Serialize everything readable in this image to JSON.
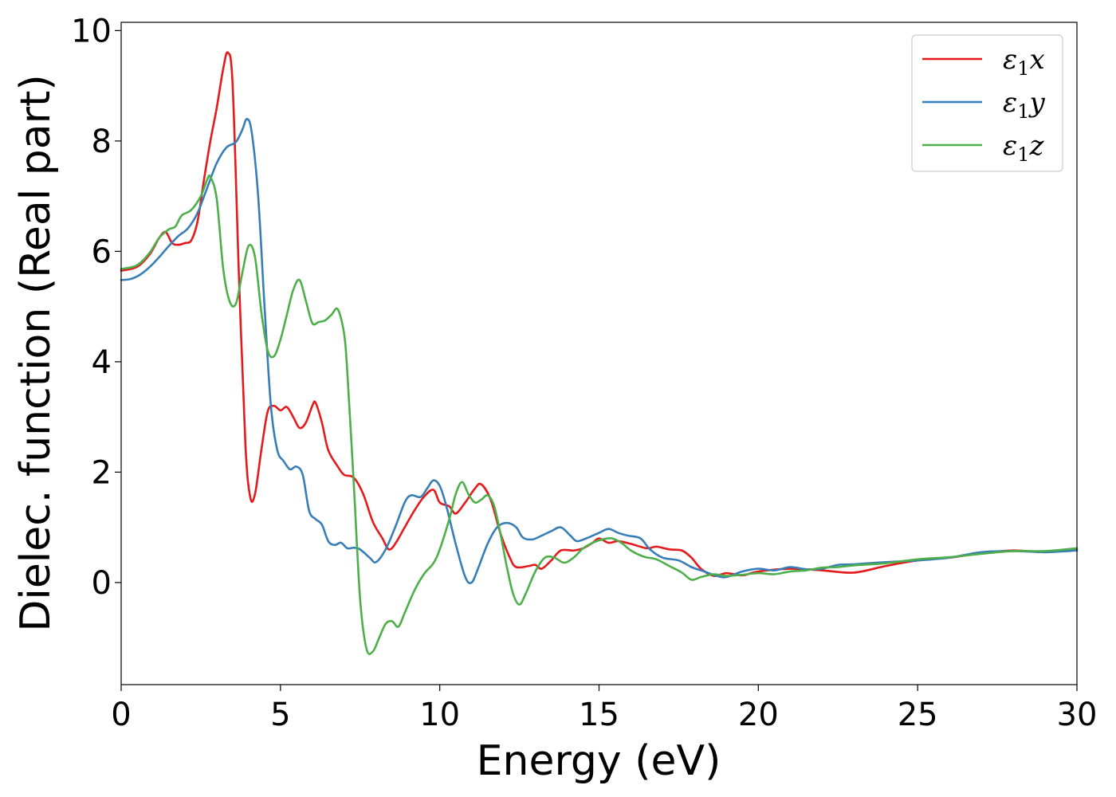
{
  "chart_data": {
    "type": "line",
    "xlabel": "Energy (eV)",
    "ylabel": "Dielec. function (Real part)",
    "xlim": [
      0,
      30
    ],
    "ylim": [
      -1.85,
      10.15
    ],
    "xticks": [
      0,
      5,
      10,
      15,
      20,
      25,
      30
    ],
    "yticks": [
      0,
      2,
      4,
      6,
      8,
      10
    ],
    "grid": false,
    "legend_position": "top-right",
    "series": [
      {
        "name": "ε₁x",
        "legend_main": "ε",
        "legend_sub": "1",
        "legend_var": "x",
        "color": "#e41a1c",
        "points": [
          [
            0,
            5.65
          ],
          [
            0.5,
            5.72
          ],
          [
            0.9,
            5.95
          ],
          [
            1.2,
            6.25
          ],
          [
            1.4,
            6.35
          ],
          [
            1.6,
            6.15
          ],
          [
            1.8,
            6.12
          ],
          [
            2.0,
            6.15
          ],
          [
            2.2,
            6.2
          ],
          [
            2.4,
            6.55
          ],
          [
            2.6,
            7.3
          ],
          [
            2.8,
            8.0
          ],
          [
            3.0,
            8.6
          ],
          [
            3.2,
            9.3
          ],
          [
            3.35,
            9.6
          ],
          [
            3.5,
            9.0
          ],
          [
            3.7,
            5.5
          ],
          [
            3.9,
            2.5
          ],
          [
            4.05,
            1.55
          ],
          [
            4.2,
            1.6
          ],
          [
            4.4,
            2.4
          ],
          [
            4.6,
            3.1
          ],
          [
            4.8,
            3.2
          ],
          [
            5.0,
            3.12
          ],
          [
            5.2,
            3.18
          ],
          [
            5.4,
            3.0
          ],
          [
            5.6,
            2.8
          ],
          [
            5.8,
            2.9
          ],
          [
            6.0,
            3.2
          ],
          [
            6.1,
            3.26
          ],
          [
            6.3,
            2.9
          ],
          [
            6.5,
            2.4
          ],
          [
            6.8,
            2.1
          ],
          [
            7.0,
            1.95
          ],
          [
            7.3,
            1.9
          ],
          [
            7.6,
            1.6
          ],
          [
            7.9,
            1.1
          ],
          [
            8.2,
            0.8
          ],
          [
            8.4,
            0.6
          ],
          [
            8.6,
            0.7
          ],
          [
            8.9,
            1.0
          ],
          [
            9.2,
            1.3
          ],
          [
            9.5,
            1.55
          ],
          [
            9.8,
            1.68
          ],
          [
            10.0,
            1.45
          ],
          [
            10.3,
            1.38
          ],
          [
            10.5,
            1.25
          ],
          [
            10.8,
            1.45
          ],
          [
            11.1,
            1.7
          ],
          [
            11.3,
            1.78
          ],
          [
            11.6,
            1.5
          ],
          [
            11.9,
            0.9
          ],
          [
            12.2,
            0.45
          ],
          [
            12.4,
            0.28
          ],
          [
            12.8,
            0.3
          ],
          [
            13.0,
            0.32
          ],
          [
            13.2,
            0.25
          ],
          [
            13.5,
            0.4
          ],
          [
            13.8,
            0.58
          ],
          [
            14.2,
            0.58
          ],
          [
            14.5,
            0.62
          ],
          [
            14.8,
            0.72
          ],
          [
            15.0,
            0.8
          ],
          [
            15.3,
            0.72
          ],
          [
            15.6,
            0.75
          ],
          [
            16.0,
            0.7
          ],
          [
            16.5,
            0.62
          ],
          [
            16.8,
            0.65
          ],
          [
            17.2,
            0.6
          ],
          [
            17.6,
            0.58
          ],
          [
            17.9,
            0.45
          ],
          [
            18.2,
            0.25
          ],
          [
            18.6,
            0.12
          ],
          [
            19.0,
            0.17
          ],
          [
            19.5,
            0.13
          ],
          [
            20.0,
            0.2
          ],
          [
            21.0,
            0.25
          ],
          [
            22.0,
            0.22
          ],
          [
            23.0,
            0.18
          ],
          [
            24.0,
            0.3
          ],
          [
            25.0,
            0.4
          ],
          [
            26.0,
            0.45
          ],
          [
            27.0,
            0.53
          ],
          [
            28.0,
            0.58
          ],
          [
            29.0,
            0.55
          ],
          [
            30.0,
            0.6
          ]
        ]
      },
      {
        "name": "ε₁y",
        "legend_main": "ε",
        "legend_sub": "1",
        "legend_var": "y",
        "color": "#377eb8",
        "points": [
          [
            0,
            5.48
          ],
          [
            0.3,
            5.5
          ],
          [
            0.6,
            5.58
          ],
          [
            0.9,
            5.72
          ],
          [
            1.2,
            5.9
          ],
          [
            1.5,
            6.1
          ],
          [
            1.8,
            6.28
          ],
          [
            2.1,
            6.42
          ],
          [
            2.4,
            6.7
          ],
          [
            2.7,
            7.15
          ],
          [
            3.0,
            7.6
          ],
          [
            3.3,
            7.88
          ],
          [
            3.6,
            7.98
          ],
          [
            3.8,
            8.2
          ],
          [
            3.95,
            8.4
          ],
          [
            4.1,
            8.15
          ],
          [
            4.3,
            7.0
          ],
          [
            4.5,
            5.0
          ],
          [
            4.7,
            3.2
          ],
          [
            4.9,
            2.4
          ],
          [
            5.1,
            2.2
          ],
          [
            5.3,
            2.05
          ],
          [
            5.5,
            2.1
          ],
          [
            5.7,
            1.95
          ],
          [
            5.9,
            1.3
          ],
          [
            6.1,
            1.15
          ],
          [
            6.3,
            1.05
          ],
          [
            6.5,
            0.75
          ],
          [
            6.7,
            0.68
          ],
          [
            6.9,
            0.72
          ],
          [
            7.1,
            0.62
          ],
          [
            7.3,
            0.63
          ],
          [
            7.5,
            0.6
          ],
          [
            7.8,
            0.45
          ],
          [
            8.0,
            0.37
          ],
          [
            8.3,
            0.6
          ],
          [
            8.6,
            1.0
          ],
          [
            8.9,
            1.45
          ],
          [
            9.1,
            1.58
          ],
          [
            9.4,
            1.55
          ],
          [
            9.6,
            1.7
          ],
          [
            9.8,
            1.85
          ],
          [
            10.0,
            1.75
          ],
          [
            10.2,
            1.4
          ],
          [
            10.5,
            0.7
          ],
          [
            10.8,
            0.1
          ],
          [
            11.0,
            0.0
          ],
          [
            11.2,
            0.25
          ],
          [
            11.5,
            0.7
          ],
          [
            11.8,
            1.0
          ],
          [
            12.1,
            1.08
          ],
          [
            12.4,
            1.0
          ],
          [
            12.6,
            0.82
          ],
          [
            12.9,
            0.78
          ],
          [
            13.2,
            0.85
          ],
          [
            13.5,
            0.93
          ],
          [
            13.8,
            1.0
          ],
          [
            14.1,
            0.85
          ],
          [
            14.3,
            0.75
          ],
          [
            14.6,
            0.8
          ],
          [
            15.0,
            0.9
          ],
          [
            15.3,
            0.97
          ],
          [
            15.6,
            0.9
          ],
          [
            15.9,
            0.85
          ],
          [
            16.3,
            0.8
          ],
          [
            16.6,
            0.6
          ],
          [
            17.0,
            0.45
          ],
          [
            17.5,
            0.4
          ],
          [
            17.9,
            0.28
          ],
          [
            18.3,
            0.2
          ],
          [
            18.7,
            0.12
          ],
          [
            19.0,
            0.1
          ],
          [
            19.5,
            0.2
          ],
          [
            20.0,
            0.25
          ],
          [
            20.5,
            0.22
          ],
          [
            21.0,
            0.28
          ],
          [
            21.5,
            0.24
          ],
          [
            22.0,
            0.25
          ],
          [
            22.5,
            0.32
          ],
          [
            23.0,
            0.33
          ],
          [
            24.0,
            0.37
          ],
          [
            25.0,
            0.4
          ],
          [
            26.0,
            0.45
          ],
          [
            27.0,
            0.55
          ],
          [
            28.0,
            0.57
          ],
          [
            29.0,
            0.55
          ],
          [
            30.0,
            0.58
          ]
        ]
      },
      {
        "name": "ε₁z",
        "legend_main": "ε",
        "legend_sub": "1",
        "legend_var": "z",
        "color": "#4daf4a",
        "points": [
          [
            0,
            5.68
          ],
          [
            0.5,
            5.75
          ],
          [
            0.9,
            5.98
          ],
          [
            1.2,
            6.25
          ],
          [
            1.5,
            6.4
          ],
          [
            1.7,
            6.45
          ],
          [
            1.9,
            6.65
          ],
          [
            2.2,
            6.75
          ],
          [
            2.5,
            7.0
          ],
          [
            2.7,
            7.3
          ],
          [
            2.8,
            7.35
          ],
          [
            3.0,
            6.95
          ],
          [
            3.2,
            5.7
          ],
          [
            3.4,
            5.1
          ],
          [
            3.6,
            5.05
          ],
          [
            3.8,
            5.6
          ],
          [
            4.0,
            6.1
          ],
          [
            4.2,
            5.9
          ],
          [
            4.4,
            4.9
          ],
          [
            4.6,
            4.2
          ],
          [
            4.8,
            4.1
          ],
          [
            5.0,
            4.4
          ],
          [
            5.2,
            4.85
          ],
          [
            5.4,
            5.3
          ],
          [
            5.6,
            5.48
          ],
          [
            5.8,
            5.1
          ],
          [
            6.0,
            4.7
          ],
          [
            6.2,
            4.72
          ],
          [
            6.4,
            4.75
          ],
          [
            6.6,
            4.85
          ],
          [
            6.8,
            4.95
          ],
          [
            7.0,
            4.5
          ],
          [
            7.1,
            3.8
          ],
          [
            7.3,
            1.8
          ],
          [
            7.5,
            -0.3
          ],
          [
            7.7,
            -1.2
          ],
          [
            7.9,
            -1.25
          ],
          [
            8.1,
            -1.0
          ],
          [
            8.3,
            -0.75
          ],
          [
            8.5,
            -0.7
          ],
          [
            8.7,
            -0.8
          ],
          [
            8.9,
            -0.55
          ],
          [
            9.2,
            -0.15
          ],
          [
            9.5,
            0.15
          ],
          [
            9.8,
            0.35
          ],
          [
            10.0,
            0.6
          ],
          [
            10.3,
            1.15
          ],
          [
            10.5,
            1.6
          ],
          [
            10.7,
            1.82
          ],
          [
            10.9,
            1.6
          ],
          [
            11.1,
            1.45
          ],
          [
            11.3,
            1.5
          ],
          [
            11.5,
            1.58
          ],
          [
            11.7,
            1.4
          ],
          [
            11.9,
            0.9
          ],
          [
            12.1,
            0.3
          ],
          [
            12.3,
            -0.2
          ],
          [
            12.5,
            -0.4
          ],
          [
            12.7,
            -0.2
          ],
          [
            13.0,
            0.2
          ],
          [
            13.3,
            0.45
          ],
          [
            13.6,
            0.45
          ],
          [
            13.9,
            0.36
          ],
          [
            14.2,
            0.45
          ],
          [
            14.5,
            0.62
          ],
          [
            14.8,
            0.72
          ],
          [
            15.1,
            0.78
          ],
          [
            15.4,
            0.8
          ],
          [
            15.7,
            0.72
          ],
          [
            16.0,
            0.58
          ],
          [
            16.4,
            0.47
          ],
          [
            16.8,
            0.42
          ],
          [
            17.2,
            0.3
          ],
          [
            17.6,
            0.18
          ],
          [
            17.9,
            0.05
          ],
          [
            18.2,
            0.1
          ],
          [
            18.6,
            0.15
          ],
          [
            19.0,
            0.12
          ],
          [
            19.5,
            0.14
          ],
          [
            20.0,
            0.17
          ],
          [
            20.5,
            0.15
          ],
          [
            21.0,
            0.2
          ],
          [
            21.5,
            0.22
          ],
          [
            22.0,
            0.27
          ],
          [
            22.5,
            0.28
          ],
          [
            23.0,
            0.31
          ],
          [
            24.0,
            0.35
          ],
          [
            25.0,
            0.42
          ],
          [
            26.0,
            0.46
          ],
          [
            27.0,
            0.52
          ],
          [
            28.0,
            0.57
          ],
          [
            29.0,
            0.57
          ],
          [
            30.0,
            0.62
          ]
        ]
      }
    ]
  }
}
